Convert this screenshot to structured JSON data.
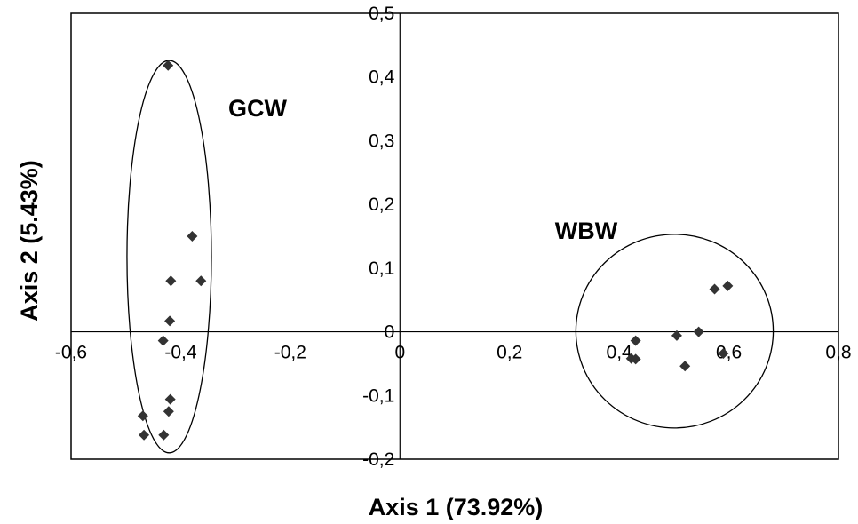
{
  "chart_data": {
    "type": "scatter",
    "title": "",
    "xlabel": "Axis 1 (73.92%)",
    "ylabel": "Axis 2 (5.43%)",
    "xlim": [
      -0.6,
      0.8
    ],
    "ylim": [
      -0.2,
      0.5
    ],
    "x_ticks": [
      -0.6,
      -0.4,
      -0.2,
      0,
      0.2,
      0.4,
      0.6,
      0.8
    ],
    "x_tick_labels": [
      "-0,6",
      "-0,4",
      "-0,2",
      "0",
      "0,2",
      "0,4",
      "0,6",
      "0,8"
    ],
    "y_ticks": [
      -0.2,
      -0.1,
      0,
      0.1,
      0.2,
      0.3,
      0.4,
      0.5
    ],
    "y_tick_labels": [
      "-0,2",
      "-0,1",
      "0",
      "0,1",
      "0,2",
      "0,3",
      "0,4",
      "0,5"
    ],
    "grid": false,
    "marker": "diamond",
    "marker_color": "#333333",
    "series": [
      {
        "name": "GCW",
        "points": [
          {
            "x": -0.423,
            "y": 0.418
          },
          {
            "x": -0.379,
            "y": 0.15
          },
          {
            "x": -0.418,
            "y": 0.08
          },
          {
            "x": -0.363,
            "y": 0.08
          },
          {
            "x": -0.42,
            "y": 0.017
          },
          {
            "x": -0.432,
            "y": -0.014
          },
          {
            "x": -0.419,
            "y": -0.106
          },
          {
            "x": -0.422,
            "y": -0.125
          },
          {
            "x": -0.469,
            "y": -0.132
          },
          {
            "x": -0.467,
            "y": -0.162
          },
          {
            "x": -0.431,
            "y": -0.162
          }
        ]
      },
      {
        "name": "WBW",
        "points": [
          {
            "x": 0.574,
            "y": 0.067
          },
          {
            "x": 0.598,
            "y": 0.072
          },
          {
            "x": 0.545,
            "y": 0.0
          },
          {
            "x": 0.505,
            "y": -0.006
          },
          {
            "x": 0.43,
            "y": -0.014
          },
          {
            "x": 0.422,
            "y": -0.042
          },
          {
            "x": 0.43,
            "y": -0.043
          },
          {
            "x": 0.52,
            "y": -0.054
          },
          {
            "x": 0.59,
            "y": -0.034
          }
        ]
      }
    ],
    "annotations": [
      {
        "text": "GCW",
        "shape": "ellipse",
        "cx": -0.421,
        "cy": 0.118,
        "rx": 0.077,
        "ry": 0.308
      },
      {
        "text": "WBW",
        "shape": "ellipse",
        "cx": 0.501,
        "cy": 0.001,
        "rx": 0.18,
        "ry": 0.152
      }
    ]
  }
}
